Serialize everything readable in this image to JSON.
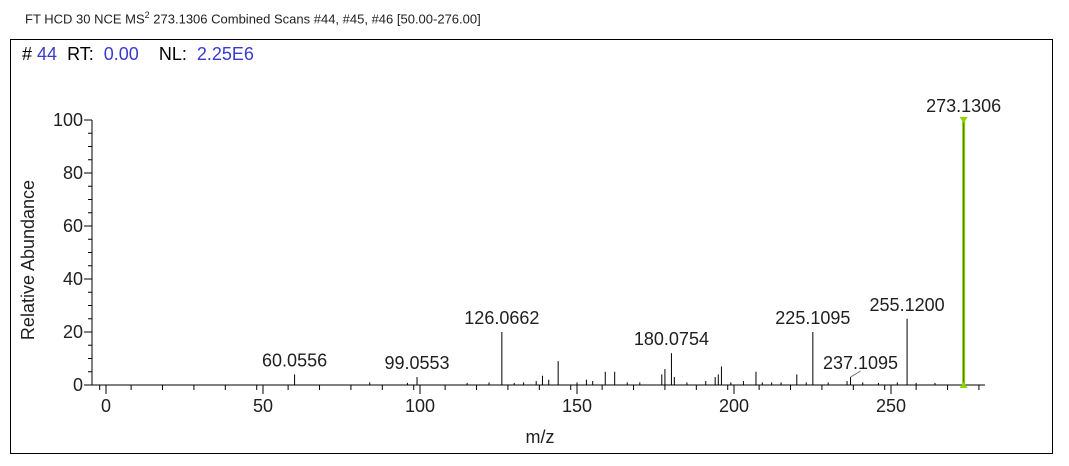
{
  "header": {
    "prefix": "FT HCD 30 NCE MS",
    "superscript": "2",
    "suffix": " 273.1306 Combined Scans #44, #45, #46 [50.00-276.00]"
  },
  "scan_info": {
    "hash_label": "#",
    "scan_number": "44",
    "rt_label": "RT:",
    "rt_value": "0.00",
    "nl_label": "NL:",
    "nl_value": "2.25E6"
  },
  "colors": {
    "axis": "#000000",
    "peak": "#000000",
    "highlight": "#8fd400",
    "label_value": "#3a3ad0"
  },
  "chart_data": {
    "type": "bar",
    "xlabel": "m/z",
    "ylabel": "Relative Abundance",
    "xlim": [
      47,
      279
    ],
    "ylim": [
      0,
      100
    ],
    "x_ticks": [
      0,
      50,
      100,
      150,
      200,
      250
    ],
    "y_ticks": [
      0,
      20,
      40,
      60,
      80,
      100
    ],
    "highlight_peak": 273.1306,
    "labeled_peaks": [
      {
        "mz": 60.0556,
        "label": "60.0556",
        "intensity": 4
      },
      {
        "mz": 99.0553,
        "label": "99.0553",
        "intensity": 3
      },
      {
        "mz": 126.0662,
        "label": "126.0662",
        "intensity": 20
      },
      {
        "mz": 180.0754,
        "label": "180.0754",
        "intensity": 12
      },
      {
        "mz": 225.1095,
        "label": "225.1095",
        "intensity": 20
      },
      {
        "mz": 237.1095,
        "label": "237.1095",
        "intensity": 3
      },
      {
        "mz": 255.12,
        "label": "255.1200",
        "intensity": 25
      },
      {
        "mz": 273.1306,
        "label": "273.1306",
        "intensity": 100
      }
    ],
    "minor_peaks": [
      {
        "mz": 84,
        "intensity": 1
      },
      {
        "mz": 96,
        "intensity": 0.8
      },
      {
        "mz": 115,
        "intensity": 0.8
      },
      {
        "mz": 122,
        "intensity": 1
      },
      {
        "mz": 130,
        "intensity": 0.8
      },
      {
        "mz": 133,
        "intensity": 1
      },
      {
        "mz": 137,
        "intensity": 1.5
      },
      {
        "mz": 139,
        "intensity": 3.5
      },
      {
        "mz": 141,
        "intensity": 2
      },
      {
        "mz": 144,
        "intensity": 9
      },
      {
        "mz": 150,
        "intensity": 1
      },
      {
        "mz": 153,
        "intensity": 2
      },
      {
        "mz": 155,
        "intensity": 1.5
      },
      {
        "mz": 159,
        "intensity": 5
      },
      {
        "mz": 162,
        "intensity": 5
      },
      {
        "mz": 166,
        "intensity": 1
      },
      {
        "mz": 170,
        "intensity": 1
      },
      {
        "mz": 177,
        "intensity": 4
      },
      {
        "mz": 178,
        "intensity": 6
      },
      {
        "mz": 181,
        "intensity": 3
      },
      {
        "mz": 185,
        "intensity": 1
      },
      {
        "mz": 191,
        "intensity": 1.5
      },
      {
        "mz": 194,
        "intensity": 3
      },
      {
        "mz": 195,
        "intensity": 4
      },
      {
        "mz": 196,
        "intensity": 7
      },
      {
        "mz": 199,
        "intensity": 1
      },
      {
        "mz": 203,
        "intensity": 1.5
      },
      {
        "mz": 207,
        "intensity": 5
      },
      {
        "mz": 209,
        "intensity": 1
      },
      {
        "mz": 212,
        "intensity": 1
      },
      {
        "mz": 215,
        "intensity": 1
      },
      {
        "mz": 220,
        "intensity": 4
      },
      {
        "mz": 223,
        "intensity": 1
      },
      {
        "mz": 230,
        "intensity": 1
      },
      {
        "mz": 236,
        "intensity": 1.5
      },
      {
        "mz": 241,
        "intensity": 1
      },
      {
        "mz": 246,
        "intensity": 0.8
      },
      {
        "mz": 252,
        "intensity": 1
      },
      {
        "mz": 258,
        "intensity": 0.8
      },
      {
        "mz": 264,
        "intensity": 0.8
      }
    ]
  }
}
